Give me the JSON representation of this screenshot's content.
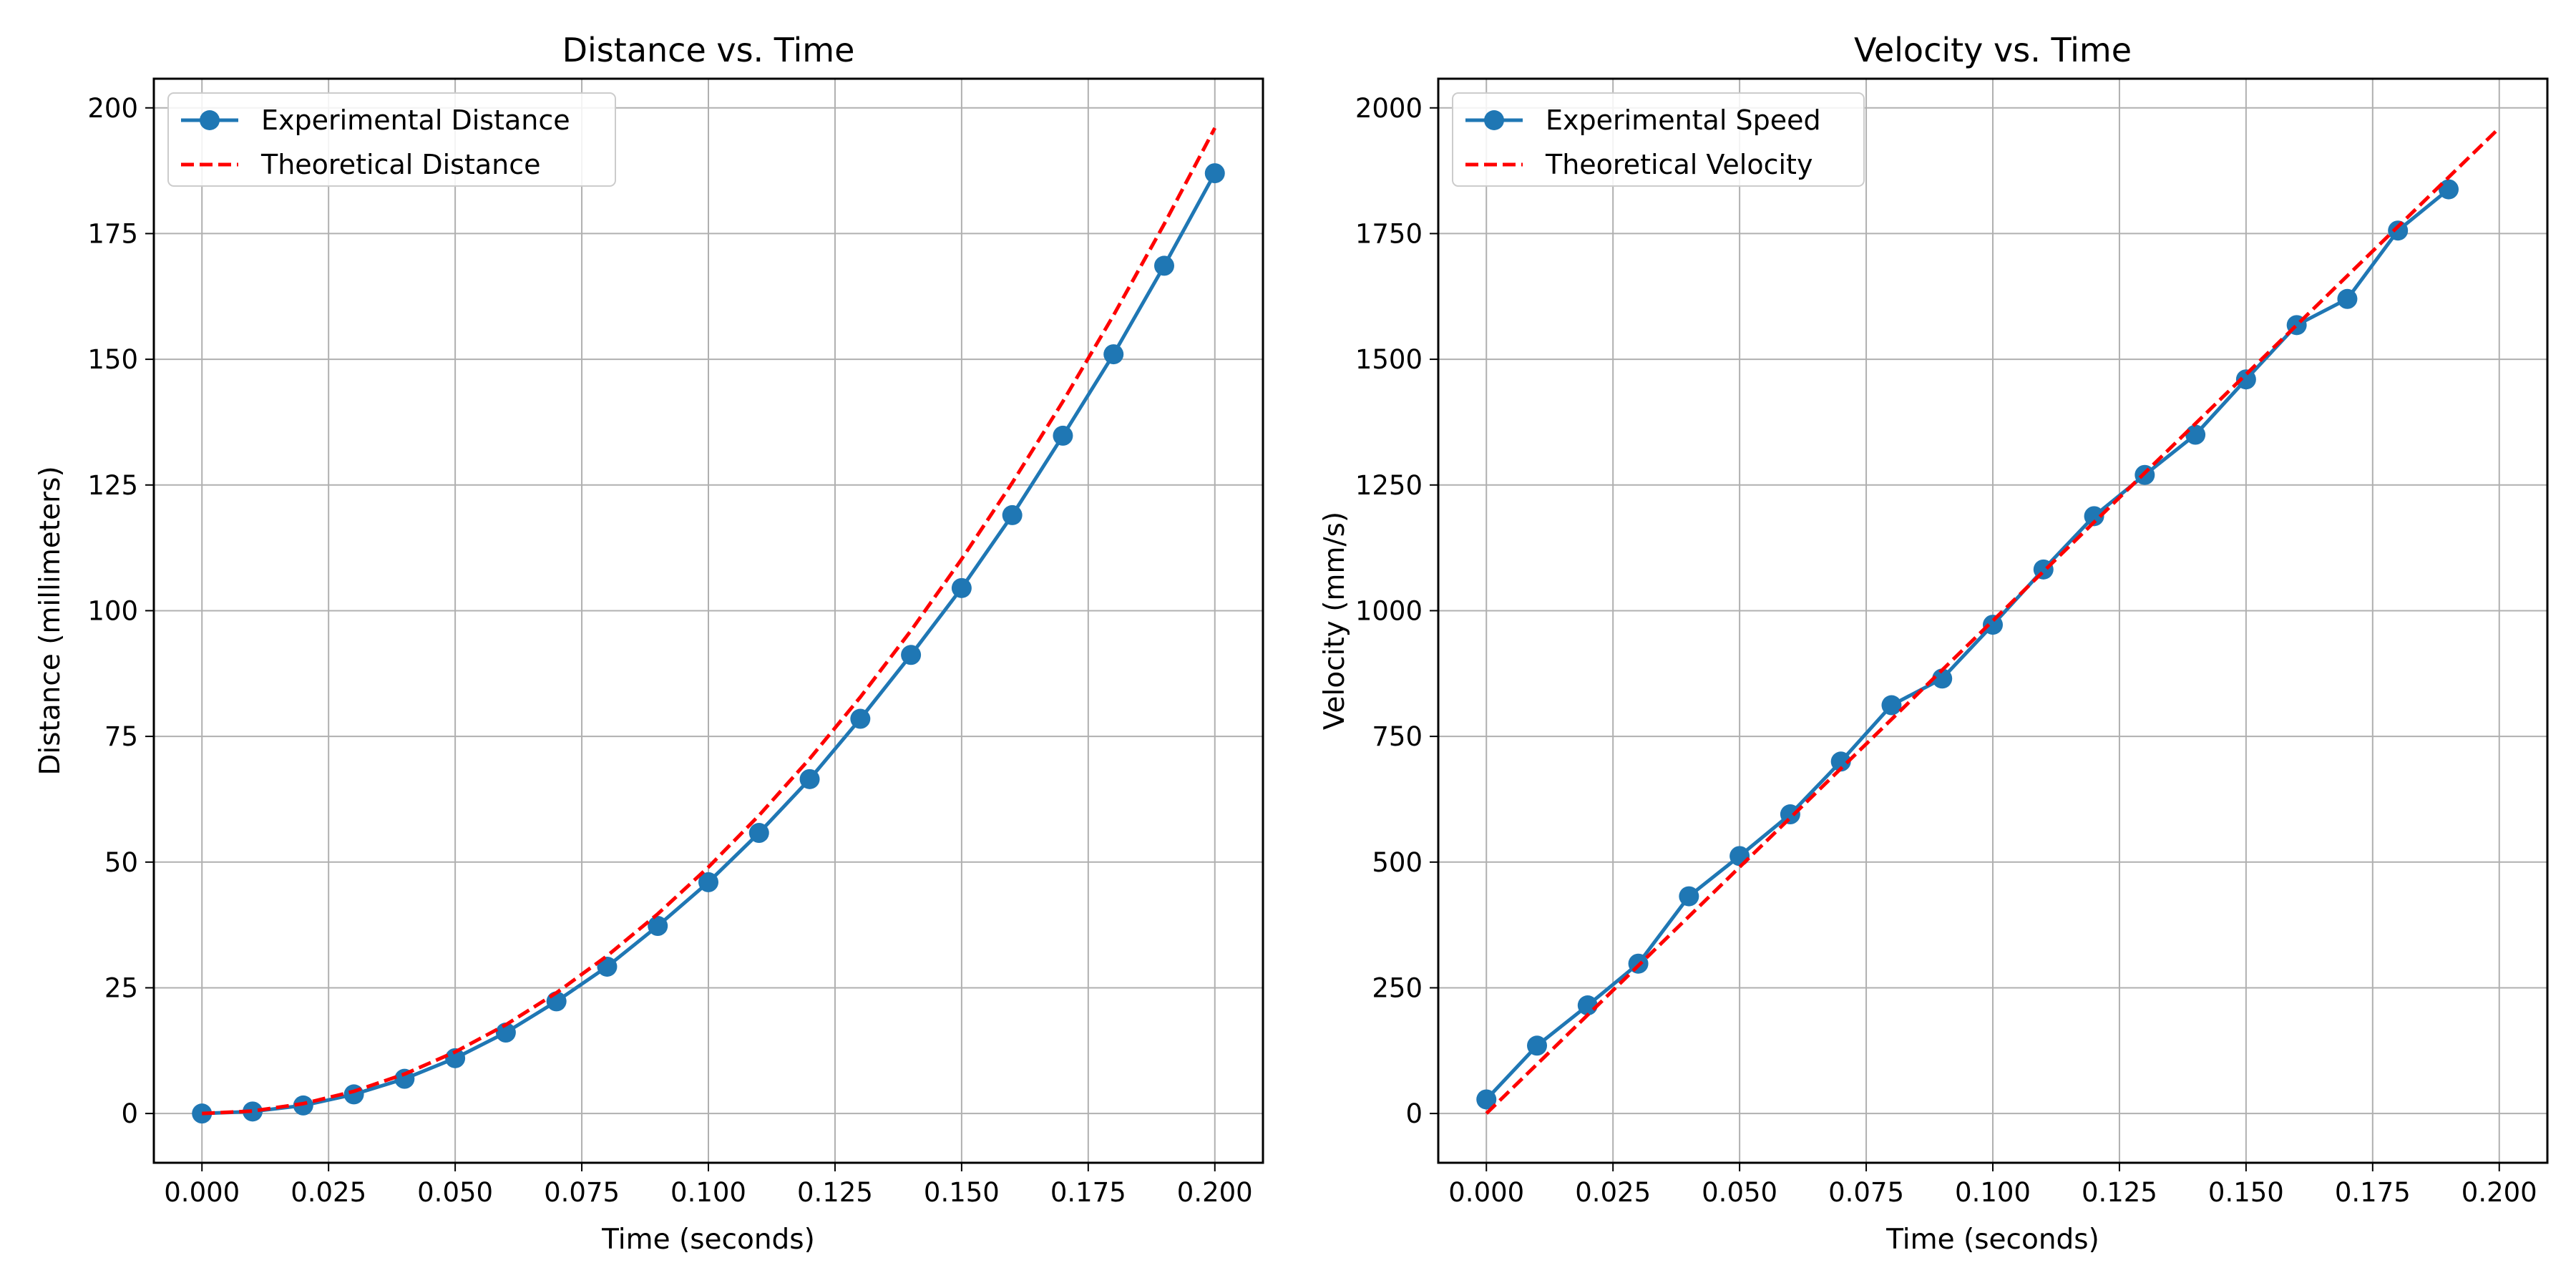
{
  "chart_data": [
    {
      "type": "line",
      "title": "Distance vs. Time",
      "xlabel": "Time (seconds)",
      "ylabel": "Distance (millimeters)",
      "xlim": [
        -0.0095,
        0.2095
      ],
      "ylim": [
        -9.8,
        205.8
      ],
      "xticks": [
        0.0,
        0.025,
        0.05,
        0.075,
        0.1,
        0.125,
        0.15,
        0.175,
        0.2
      ],
      "xtick_labels": [
        "0.000",
        "0.025",
        "0.050",
        "0.075",
        "0.100",
        "0.125",
        "0.150",
        "0.175",
        "0.200"
      ],
      "yticks": [
        0,
        25,
        50,
        75,
        100,
        125,
        150,
        175,
        200
      ],
      "ytick_labels": [
        "0",
        "25",
        "50",
        "75",
        "100",
        "125",
        "150",
        "175",
        "200"
      ],
      "grid": true,
      "legend_position": "top-left",
      "series": [
        {
          "name": "Experimental Distance",
          "style": "solid-markers",
          "color": "#1f77b4",
          "x": [
            0.0,
            0.01,
            0.02,
            0.03,
            0.04,
            0.05,
            0.06,
            0.07,
            0.08,
            0.09,
            0.1,
            0.11,
            0.12,
            0.13,
            0.14,
            0.15,
            0.16,
            0.17,
            0.18,
            0.19,
            0.2
          ],
          "y": [
            0.0,
            0.4,
            1.6,
            3.8,
            6.9,
            11.0,
            16.1,
            22.3,
            29.2,
            37.3,
            46.0,
            55.8,
            66.5,
            78.5,
            91.2,
            104.5,
            119.0,
            134.8,
            151.0,
            168.6,
            187.0
          ]
        },
        {
          "name": "Theoretical Distance",
          "style": "dashed",
          "color": "#ff0000",
          "x": [
            0.0,
            0.01,
            0.02,
            0.03,
            0.04,
            0.05,
            0.06,
            0.07,
            0.08,
            0.09,
            0.1,
            0.11,
            0.12,
            0.13,
            0.14,
            0.15,
            0.16,
            0.17,
            0.18,
            0.19,
            0.2
          ],
          "y": [
            0.0,
            0.49,
            1.96,
            4.41,
            7.84,
            12.25,
            17.64,
            24.01,
            31.36,
            39.69,
            49.0,
            59.29,
            70.56,
            82.81,
            96.04,
            110.25,
            125.44,
            141.61,
            158.76,
            176.89,
            196.0
          ]
        }
      ]
    },
    {
      "type": "line",
      "title": "Velocity vs. Time",
      "xlabel": "Time (seconds)",
      "ylabel": "Velocity (mm/s)",
      "xlim": [
        -0.0095,
        0.2095
      ],
      "ylim": [
        -98,
        2058
      ],
      "xticks": [
        0.0,
        0.025,
        0.05,
        0.075,
        0.1,
        0.125,
        0.15,
        0.175,
        0.2
      ],
      "xtick_labels": [
        "0.000",
        "0.025",
        "0.050",
        "0.075",
        "0.100",
        "0.125",
        "0.150",
        "0.175",
        "0.200"
      ],
      "yticks": [
        0,
        250,
        500,
        750,
        1000,
        1250,
        1500,
        1750,
        2000
      ],
      "ytick_labels": [
        "0",
        "250",
        "500",
        "750",
        "1000",
        "1250",
        "1500",
        "1750",
        "2000"
      ],
      "grid": true,
      "legend_position": "top-left",
      "series": [
        {
          "name": "Experimental Speed",
          "style": "solid-markers",
          "color": "#1f77b4",
          "x": [
            0.0,
            0.01,
            0.02,
            0.03,
            0.04,
            0.05,
            0.06,
            0.07,
            0.08,
            0.09,
            0.1,
            0.11,
            0.12,
            0.13,
            0.14,
            0.15,
            0.16,
            0.17,
            0.18,
            0.19
          ],
          "y": [
            28,
            135,
            215,
            298,
            432,
            512,
            595,
            700,
            812,
            865,
            972,
            1082,
            1188,
            1270,
            1350,
            1460,
            1568,
            1620,
            1756,
            1838
          ]
        },
        {
          "name": "Theoretical Velocity",
          "style": "dashed",
          "color": "#ff0000",
          "x": [
            0.0,
            0.2
          ],
          "y": [
            0,
            1960
          ]
        }
      ]
    }
  ]
}
